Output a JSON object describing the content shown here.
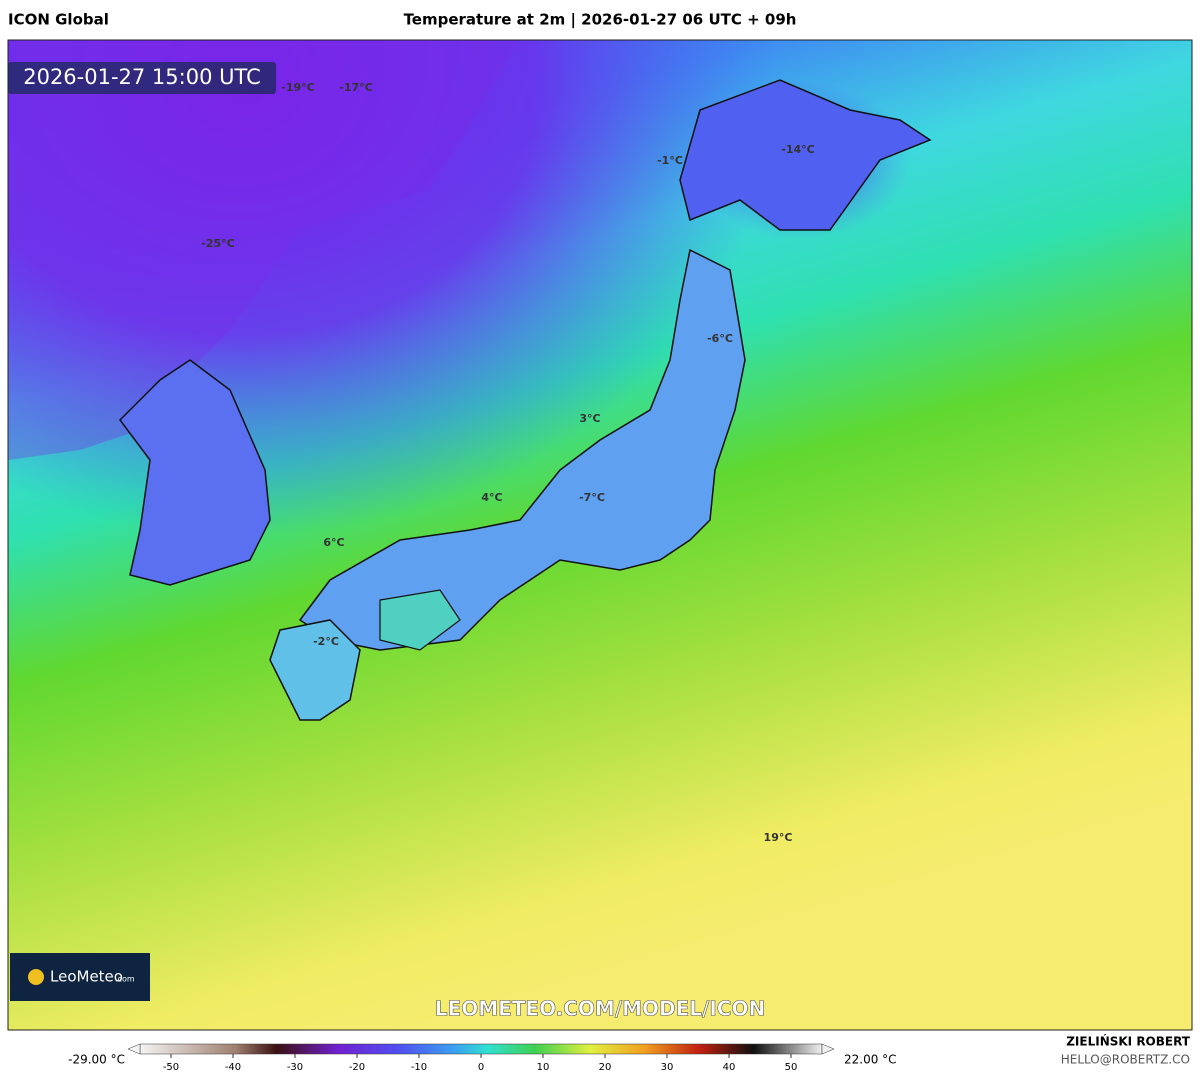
{
  "header": {
    "model": "ICON Global",
    "title": "Temperature at 2m | 2026-01-27 06 UTC + 09h"
  },
  "map": {
    "timestamp": "2026-01-27 15:00 UTC",
    "labels": [
      "-19°C",
      "-17°C",
      "-25°C",
      "-1°C",
      "-14°C",
      "-6°C",
      "3°C",
      "4°C",
      "-7°C",
      "6°C",
      "-2°C",
      "19°C"
    ],
    "watermark": "LEOMETEO.COM/MODEL/ICON",
    "logo": {
      "name": "LeoMeteo",
      "suffix": ".com"
    }
  },
  "colorbar": {
    "min_label": "-29.00 °C",
    "max_label": "22.00 °C",
    "lim": [
      -55,
      55
    ],
    "ticks": [
      -50,
      -40,
      -30,
      -20,
      -10,
      0,
      10,
      20,
      30,
      40,
      50
    ]
  },
  "footer": {
    "author": "ZIELIŃSKI ROBERT",
    "email": "HELLO@ROBERTZ.CO"
  }
}
